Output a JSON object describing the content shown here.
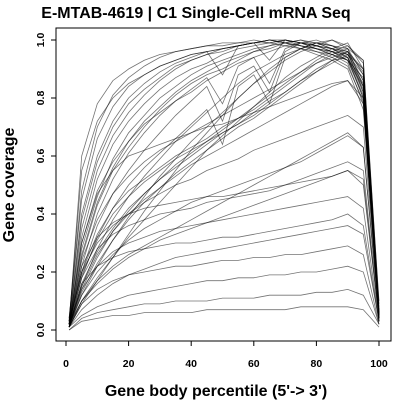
{
  "chart_data": {
    "type": "line",
    "title": "E-MTAB-4619 | C1 Single-Cell mRNA Seq",
    "xlabel": "Gene body percentile (5'-> 3')",
    "ylabel": "Gene coverage",
    "xlim": [
      0,
      100
    ],
    "ylim": [
      0,
      1
    ],
    "x_ticks": [
      "0",
      "20",
      "40",
      "60",
      "80",
      "100"
    ],
    "y_ticks": [
      "0.0",
      "0.2",
      "0.4",
      "0.6",
      "0.8",
      "1.0"
    ],
    "line_color": "#000000",
    "x": [
      1,
      5,
      10,
      15,
      20,
      25,
      30,
      35,
      40,
      45,
      50,
      55,
      60,
      65,
      70,
      75,
      80,
      85,
      90,
      95,
      100
    ],
    "series": [
      {
        "values": [
          0.02,
          0.32,
          0.52,
          0.64,
          0.72,
          0.78,
          0.83,
          0.87,
          0.9,
          0.92,
          0.95,
          0.97,
          0.98,
          0.99,
          1.0,
          0.99,
          0.98,
          0.97,
          0.96,
          0.9,
          0.05
        ]
      },
      {
        "values": [
          0.01,
          0.25,
          0.43,
          0.55,
          0.63,
          0.7,
          0.76,
          0.81,
          0.85,
          0.88,
          0.9,
          0.93,
          0.96,
          0.97,
          0.99,
          1.0,
          0.98,
          0.96,
          0.94,
          0.85,
          0.04
        ]
      },
      {
        "values": [
          0.03,
          0.4,
          0.6,
          0.72,
          0.8,
          0.85,
          0.89,
          0.92,
          0.94,
          0.96,
          0.97,
          0.98,
          0.99,
          1.0,
          0.99,
          0.98,
          0.97,
          0.95,
          0.93,
          0.8,
          0.06
        ]
      },
      {
        "values": [
          0.02,
          0.2,
          0.36,
          0.47,
          0.55,
          0.62,
          0.68,
          0.74,
          0.79,
          0.84,
          0.72,
          0.88,
          0.91,
          0.82,
          0.96,
          0.99,
          0.97,
          0.95,
          0.92,
          0.78,
          0.03
        ]
      },
      {
        "values": [
          0.01,
          0.15,
          0.28,
          0.38,
          0.46,
          0.53,
          0.59,
          0.65,
          0.7,
          0.75,
          0.8,
          0.85,
          0.89,
          0.92,
          0.95,
          0.97,
          0.99,
          0.98,
          0.96,
          0.82,
          0.05
        ]
      },
      {
        "values": [
          0.04,
          0.45,
          0.66,
          0.77,
          0.84,
          0.88,
          0.91,
          0.93,
          0.95,
          0.96,
          0.88,
          0.98,
          0.99,
          0.93,
          1.0,
          0.99,
          0.98,
          0.97,
          0.95,
          0.88,
          0.07
        ]
      },
      {
        "values": [
          0.02,
          0.3,
          0.48,
          0.58,
          0.65,
          0.71,
          0.75,
          0.79,
          0.82,
          0.86,
          0.89,
          0.92,
          0.94,
          0.96,
          0.98,
          0.99,
          1.0,
          0.98,
          0.95,
          0.86,
          0.04
        ]
      },
      {
        "values": [
          0.03,
          0.35,
          0.55,
          0.67,
          0.75,
          0.81,
          0.86,
          0.9,
          0.93,
          0.95,
          0.97,
          0.98,
          0.99,
          1.0,
          0.99,
          0.97,
          0.95,
          0.93,
          0.9,
          0.76,
          0.05
        ]
      },
      {
        "values": [
          0.01,
          0.18,
          0.32,
          0.42,
          0.5,
          0.56,
          0.61,
          0.66,
          0.71,
          0.76,
          0.64,
          0.84,
          0.88,
          0.78,
          0.94,
          0.97,
          0.99,
          0.97,
          0.94,
          0.8,
          0.03
        ]
      },
      {
        "values": [
          0.02,
          0.28,
          0.46,
          0.59,
          0.68,
          0.74,
          0.8,
          0.84,
          0.88,
          0.91,
          0.93,
          0.95,
          0.97,
          0.98,
          1.0,
          0.99,
          0.97,
          0.96,
          0.93,
          0.84,
          0.06
        ]
      },
      {
        "values": [
          0.01,
          0.12,
          0.22,
          0.31,
          0.39,
          0.46,
          0.53,
          0.59,
          0.65,
          0.7,
          0.75,
          0.8,
          0.85,
          0.89,
          0.93,
          0.96,
          0.98,
          1.0,
          0.97,
          0.84,
          0.05
        ]
      },
      {
        "values": [
          0.03,
          0.38,
          0.58,
          0.7,
          0.78,
          0.83,
          0.87,
          0.91,
          0.93,
          0.95,
          0.96,
          0.98,
          0.99,
          0.99,
          1.0,
          0.98,
          0.96,
          0.94,
          0.91,
          0.79,
          0.04
        ]
      },
      {
        "values": [
          0.02,
          0.22,
          0.4,
          0.52,
          0.61,
          0.68,
          0.74,
          0.79,
          0.83,
          0.87,
          0.78,
          0.91,
          0.94,
          0.85,
          0.97,
          0.99,
          0.98,
          0.96,
          0.93,
          0.81,
          0.04
        ]
      },
      {
        "values": [
          0.04,
          0.48,
          0.7,
          0.81,
          0.87,
          0.91,
          0.94,
          0.96,
          0.97,
          0.98,
          0.99,
          0.99,
          1.0,
          0.99,
          0.98,
          0.97,
          0.96,
          0.95,
          0.93,
          0.87,
          0.08
        ]
      },
      {
        "values": [
          0.02,
          0.26,
          0.44,
          0.56,
          0.65,
          0.72,
          0.77,
          0.82,
          0.86,
          0.89,
          0.92,
          0.94,
          0.96,
          0.98,
          0.99,
          1.0,
          0.99,
          0.97,
          0.94,
          0.83,
          0.05
        ]
      },
      {
        "values": [
          0.01,
          0.1,
          0.18,
          0.25,
          0.32,
          0.38,
          0.44,
          0.5,
          0.56,
          0.62,
          0.67,
          0.72,
          0.77,
          0.82,
          0.87,
          0.91,
          0.94,
          0.97,
          0.99,
          0.9,
          0.06
        ]
      },
      {
        "values": [
          0.02,
          0.2,
          0.33,
          0.42,
          0.48,
          0.52,
          0.56,
          0.6,
          0.63,
          0.66,
          0.7,
          0.73,
          0.76,
          0.8,
          0.84,
          0.88,
          0.92,
          0.95,
          0.97,
          0.88,
          0.05
        ]
      },
      {
        "values": [
          0.01,
          0.16,
          0.27,
          0.35,
          0.42,
          0.47,
          0.52,
          0.56,
          0.6,
          0.64,
          0.68,
          0.71,
          0.75,
          0.79,
          0.82,
          0.86,
          0.89,
          0.92,
          0.95,
          0.84,
          0.04
        ]
      },
      {
        "values": [
          0.02,
          0.24,
          0.38,
          0.47,
          0.53,
          0.58,
          0.62,
          0.65,
          0.68,
          0.71,
          0.74,
          0.77,
          0.8,
          0.83,
          0.86,
          0.89,
          0.92,
          0.94,
          0.96,
          0.86,
          0.06
        ]
      },
      {
        "values": [
          0.01,
          0.13,
          0.23,
          0.31,
          0.38,
          0.44,
          0.49,
          0.54,
          0.58,
          0.62,
          0.66,
          0.7,
          0.73,
          0.77,
          0.81,
          0.85,
          0.89,
          0.93,
          0.96,
          0.89,
          0.05
        ]
      },
      {
        "values": [
          0.01,
          0.14,
          0.25,
          0.34,
          0.41,
          0.47,
          0.52,
          0.57,
          0.61,
          0.65,
          0.69,
          0.73,
          0.77,
          0.81,
          0.85,
          0.89,
          0.93,
          0.96,
          0.98,
          0.93,
          0.07
        ]
      },
      {
        "values": [
          0.02,
          0.19,
          0.31,
          0.4,
          0.46,
          0.51,
          0.55,
          0.59,
          0.62,
          0.65,
          0.68,
          0.71,
          0.74,
          0.78,
          0.82,
          0.86,
          0.9,
          0.93,
          0.94,
          0.82,
          0.05
        ]
      },
      {
        "values": [
          0.02,
          0.3,
          0.47,
          0.55,
          0.6,
          0.62,
          0.64,
          0.66,
          0.68,
          0.7,
          0.71,
          0.73,
          0.75,
          0.77,
          0.79,
          0.81,
          0.83,
          0.85,
          0.86,
          0.78,
          0.06
        ]
      },
      {
        "values": [
          0.01,
          0.09,
          0.17,
          0.25,
          0.33,
          0.41,
          0.48,
          0.55,
          0.62,
          0.68,
          0.74,
          0.8,
          0.85,
          0.9,
          0.94,
          0.97,
          0.99,
          1.0,
          0.98,
          0.92,
          0.06
        ]
      },
      {
        "values": [
          0.03,
          0.2,
          0.3,
          0.36,
          0.4,
          0.44,
          0.47,
          0.5,
          0.52,
          0.55,
          0.57,
          0.59,
          0.62,
          0.64,
          0.66,
          0.68,
          0.7,
          0.72,
          0.74,
          0.7,
          0.05
        ]
      },
      {
        "values": [
          0.02,
          0.15,
          0.26,
          0.34,
          0.4,
          0.45,
          0.49,
          0.53,
          0.57,
          0.6,
          0.63,
          0.66,
          0.69,
          0.72,
          0.75,
          0.78,
          0.81,
          0.84,
          0.86,
          0.8,
          0.05
        ]
      },
      {
        "values": [
          0.01,
          0.18,
          0.28,
          0.33,
          0.36,
          0.38,
          0.4,
          0.41,
          0.42,
          0.44,
          0.45,
          0.46,
          0.47,
          0.48,
          0.5,
          0.52,
          0.54,
          0.56,
          0.58,
          0.55,
          0.04
        ]
      },
      {
        "values": [
          0.02,
          0.12,
          0.2,
          0.26,
          0.31,
          0.35,
          0.38,
          0.41,
          0.44,
          0.46,
          0.48,
          0.5,
          0.52,
          0.54,
          0.56,
          0.58,
          0.61,
          0.64,
          0.67,
          0.63,
          0.05
        ]
      },
      {
        "values": [
          0.01,
          0.22,
          0.32,
          0.37,
          0.4,
          0.42,
          0.43,
          0.44,
          0.45,
          0.46,
          0.46,
          0.47,
          0.48,
          0.49,
          0.5,
          0.51,
          0.52,
          0.53,
          0.55,
          0.5,
          0.04
        ]
      },
      {
        "values": [
          0.01,
          0.1,
          0.16,
          0.21,
          0.25,
          0.28,
          0.31,
          0.33,
          0.35,
          0.37,
          0.39,
          0.41,
          0.43,
          0.45,
          0.47,
          0.49,
          0.51,
          0.53,
          0.55,
          0.52,
          0.04
        ]
      },
      {
        "values": [
          0.02,
          0.14,
          0.22,
          0.27,
          0.3,
          0.32,
          0.34,
          0.35,
          0.36,
          0.37,
          0.38,
          0.39,
          0.4,
          0.41,
          0.42,
          0.43,
          0.44,
          0.45,
          0.46,
          0.42,
          0.03
        ]
      },
      {
        "values": [
          0.01,
          0.16,
          0.22,
          0.25,
          0.27,
          0.28,
          0.29,
          0.3,
          0.3,
          0.31,
          0.32,
          0.32,
          0.33,
          0.34,
          0.35,
          0.36,
          0.37,
          0.38,
          0.4,
          0.36,
          0.03
        ]
      },
      {
        "values": [
          0.01,
          0.07,
          0.12,
          0.16,
          0.19,
          0.21,
          0.23,
          0.25,
          0.26,
          0.27,
          0.28,
          0.29,
          0.3,
          0.31,
          0.32,
          0.33,
          0.34,
          0.35,
          0.36,
          0.33,
          0.03
        ]
      },
      {
        "values": [
          0.01,
          0.09,
          0.14,
          0.17,
          0.19,
          0.2,
          0.21,
          0.22,
          0.22,
          0.23,
          0.24,
          0.24,
          0.25,
          0.25,
          0.26,
          0.26,
          0.27,
          0.28,
          0.29,
          0.26,
          0.02
        ]
      },
      {
        "values": [
          0.01,
          0.05,
          0.08,
          0.1,
          0.12,
          0.13,
          0.14,
          0.15,
          0.16,
          0.17,
          0.17,
          0.18,
          0.18,
          0.19,
          0.19,
          0.2,
          0.2,
          0.21,
          0.22,
          0.2,
          0.02
        ]
      },
      {
        "values": [
          0.0,
          0.04,
          0.06,
          0.07,
          0.08,
          0.09,
          0.09,
          0.1,
          0.1,
          0.1,
          0.11,
          0.11,
          0.11,
          0.12,
          0.12,
          0.12,
          0.13,
          0.13,
          0.14,
          0.12,
          0.02
        ]
      },
      {
        "values": [
          0.0,
          0.03,
          0.04,
          0.05,
          0.05,
          0.06,
          0.06,
          0.06,
          0.06,
          0.07,
          0.07,
          0.07,
          0.07,
          0.07,
          0.07,
          0.08,
          0.08,
          0.08,
          0.08,
          0.07,
          0.01
        ]
      },
      {
        "values": [
          0.02,
          0.6,
          0.78,
          0.86,
          0.9,
          0.93,
          0.95,
          0.96,
          0.97,
          0.98,
          0.98,
          0.99,
          0.99,
          1.0,
          0.99,
          0.98,
          0.97,
          0.96,
          0.95,
          0.9,
          0.1
        ]
      },
      {
        "values": [
          0.03,
          0.55,
          0.72,
          0.8,
          0.85,
          0.88,
          0.91,
          0.93,
          0.95,
          0.96,
          0.97,
          0.98,
          0.99,
          1.0,
          1.0,
          0.99,
          0.99,
          0.98,
          0.97,
          0.93,
          0.09
        ]
      },
      {
        "values": [
          0.02,
          0.1,
          0.17,
          0.22,
          0.26,
          0.29,
          0.32,
          0.35,
          0.38,
          0.41,
          0.44,
          0.47,
          0.5,
          0.53,
          0.56,
          0.59,
          0.62,
          0.65,
          0.68,
          0.63,
          0.05
        ]
      }
    ]
  }
}
